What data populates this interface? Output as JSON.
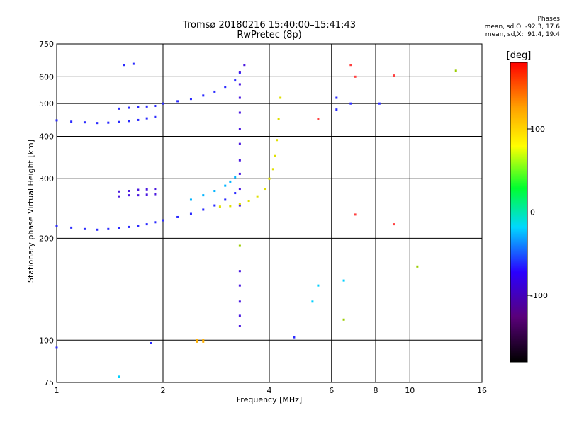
{
  "header": {
    "title": "Tromsø 20180216 15:40:00–15:41:43",
    "subtitle": "RwPretec (8p)"
  },
  "stats": {
    "heading": "Phases",
    "o_line": "mean, sd,O: -92.3, 17.6",
    "x_line": "mean, sd,X:  91.4, 19.4"
  },
  "chart_data": {
    "type": "scatter",
    "xlabel": "Frequency [MHz]",
    "ylabel": "Stationary phase Virtual Height [km]",
    "xscale": "log",
    "yscale": "log",
    "xlim": [
      1,
      16
    ],
    "ylim": [
      75,
      750
    ],
    "xticks": [
      1,
      2,
      4,
      6,
      8,
      10,
      16
    ],
    "yticks": [
      75,
      100,
      200,
      300,
      400,
      500,
      600,
      750
    ],
    "grid": true,
    "colorbar": {
      "label": "[deg]",
      "range": [
        -180,
        180
      ],
      "ticks": [
        100,
        0,
        -100
      ],
      "colors": [
        "#000000",
        "#5a007a",
        "#2a00ff",
        "#00d8ff",
        "#00ff30",
        "#ffff00",
        "#ffa000",
        "#ff0000"
      ]
    },
    "series": [
      {
        "color": "#2a2aff",
        "points": [
          [
            1.0,
            218
          ],
          [
            1.1,
            215
          ],
          [
            1.2,
            213
          ],
          [
            1.3,
            212
          ],
          [
            1.4,
            213
          ],
          [
            1.5,
            214
          ],
          [
            1.6,
            216
          ],
          [
            1.7,
            218
          ],
          [
            1.8,
            220
          ],
          [
            1.9,
            223
          ],
          [
            2.0,
            226
          ],
          [
            2.2,
            231
          ],
          [
            2.4,
            236
          ],
          [
            2.6,
            243
          ],
          [
            2.8,
            250
          ],
          [
            3.0,
            260
          ],
          [
            3.2,
            272
          ]
        ]
      },
      {
        "color": "#2a2aff",
        "points": [
          [
            1.0,
            446
          ],
          [
            1.1,
            442
          ],
          [
            1.2,
            440
          ],
          [
            1.3,
            438
          ],
          [
            1.4,
            439
          ],
          [
            1.5,
            441
          ],
          [
            1.6,
            444
          ],
          [
            1.7,
            447
          ],
          [
            1.8,
            452
          ],
          [
            1.9,
            456
          ]
        ]
      },
      {
        "color": "#2a2aff",
        "points": [
          [
            1.5,
            483
          ],
          [
            1.6,
            486
          ],
          [
            1.7,
            488
          ],
          [
            1.8,
            490
          ],
          [
            1.9,
            492
          ]
        ]
      },
      {
        "color": "#2a2aff",
        "points": [
          [
            2.0,
            500
          ],
          [
            2.2,
            508
          ],
          [
            2.4,
            516
          ],
          [
            2.6,
            528
          ],
          [
            2.8,
            542
          ],
          [
            3.0,
            560
          ],
          [
            3.2,
            585
          ],
          [
            3.3,
            615
          ]
        ]
      },
      {
        "color": "#4a18e0",
        "points": [
          [
            1.5,
            275
          ],
          [
            1.6,
            276
          ],
          [
            1.7,
            278
          ],
          [
            1.8,
            279
          ],
          [
            1.9,
            280
          ],
          [
            1.5,
            266
          ],
          [
            1.6,
            268
          ],
          [
            1.7,
            268
          ],
          [
            1.8,
            269
          ],
          [
            1.9,
            270
          ]
        ]
      },
      {
        "color": "#4a18e0",
        "points": [
          [
            3.3,
            250
          ],
          [
            3.3,
            280
          ],
          [
            3.3,
            310
          ],
          [
            3.3,
            340
          ],
          [
            3.3,
            380
          ],
          [
            3.3,
            420
          ],
          [
            3.3,
            470
          ],
          [
            3.3,
            520
          ],
          [
            3.3,
            570
          ],
          [
            3.3,
            620
          ],
          [
            3.4,
            650
          ]
        ]
      },
      {
        "color": "#00b4ff",
        "points": [
          [
            2.4,
            260
          ],
          [
            2.6,
            268
          ],
          [
            2.8,
            276
          ],
          [
            3.0,
            286
          ],
          [
            3.1,
            294
          ],
          [
            3.2,
            303
          ]
        ]
      },
      {
        "color": "#e0e000",
        "points": [
          [
            2.9,
            248
          ],
          [
            3.1,
            249
          ],
          [
            3.3,
            252
          ],
          [
            3.5,
            258
          ],
          [
            3.7,
            266
          ],
          [
            3.9,
            280
          ],
          [
            4.0,
            300
          ],
          [
            4.1,
            320
          ],
          [
            4.15,
            350
          ],
          [
            4.2,
            390
          ],
          [
            4.25,
            450
          ],
          [
            4.3,
            520
          ]
        ]
      },
      {
        "color": "#ffb000",
        "points": [
          [
            2.5,
            100
          ],
          [
            2.6,
            100
          ],
          [
            2.5,
            99
          ],
          [
            2.6,
            99
          ]
        ]
      },
      {
        "color": "#4a18e0",
        "points": [
          [
            3.3,
            160
          ],
          [
            3.3,
            145
          ],
          [
            3.3,
            130
          ],
          [
            3.3,
            118
          ],
          [
            3.3,
            110
          ]
        ]
      },
      {
        "color": "#2a2aff",
        "points": [
          [
            1.0,
            95
          ],
          [
            1.85,
            98
          ],
          [
            4.7,
            102
          ],
          [
            6.2,
            520
          ],
          [
            6.2,
            480
          ],
          [
            6.8,
            500
          ],
          [
            8.2,
            500
          ],
          [
            1.55,
            650
          ],
          [
            1.65,
            655
          ]
        ]
      },
      {
        "color": "#00d0ff",
        "points": [
          [
            1.5,
            78
          ],
          [
            5.3,
            130
          ],
          [
            5.5,
            145
          ],
          [
            6.5,
            150
          ]
        ]
      },
      {
        "color": "#ff4040",
        "points": [
          [
            5.5,
            450
          ],
          [
            6.8,
            650
          ],
          [
            7.0,
            600
          ],
          [
            9.0,
            220
          ],
          [
            9.0,
            605
          ],
          [
            7.0,
            235
          ]
        ]
      },
      {
        "color": "#9acd00",
        "points": [
          [
            13.5,
            625
          ],
          [
            10.5,
            165
          ],
          [
            3.3,
            190
          ],
          [
            6.5,
            115
          ]
        ]
      }
    ]
  }
}
